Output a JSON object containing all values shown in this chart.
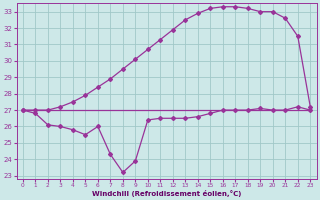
{
  "bg_color": "#cde8e8",
  "grid_color": "#a0c8c8",
  "line_color": "#993399",
  "xlabel": "Windchill (Refroidissement éolien,°C)",
  "xlabel_color": "#660066",
  "ylim": [
    22.8,
    33.5
  ],
  "xlim": [
    -0.5,
    23.5
  ],
  "yticks": [
    23,
    24,
    25,
    26,
    27,
    28,
    29,
    30,
    31,
    32,
    33
  ],
  "xticks": [
    0,
    1,
    2,
    3,
    4,
    5,
    6,
    7,
    8,
    9,
    10,
    11,
    12,
    13,
    14,
    15,
    16,
    17,
    18,
    19,
    20,
    21,
    22,
    23
  ],
  "line1_x": [
    0,
    1,
    2,
    3,
    4,
    5,
    6,
    7,
    8,
    9,
    10,
    11,
    12,
    13,
    14,
    15,
    16,
    17,
    18,
    19,
    20,
    21,
    22,
    23
  ],
  "line1_y": [
    27.0,
    26.8,
    26.1,
    26.0,
    25.8,
    25.5,
    26.0,
    24.3,
    23.2,
    23.9,
    26.4,
    26.5,
    26.5,
    26.5,
    26.6,
    26.8,
    27.0,
    27.0,
    27.0,
    27.1,
    27.0,
    27.0,
    27.2,
    27.0
  ],
  "line2_x": [
    0,
    1,
    2,
    3,
    4,
    5,
    6,
    7,
    8,
    9,
    10,
    11,
    12,
    13,
    14,
    15,
    16,
    17,
    18,
    19,
    20,
    21,
    22,
    23
  ],
  "line2_y": [
    27.0,
    27.0,
    27.0,
    27.0,
    27.0,
    27.0,
    27.0,
    27.0,
    27.0,
    27.0,
    27.0,
    27.0,
    27.0,
    27.0,
    27.0,
    27.0,
    27.0,
    27.0,
    27.0,
    27.0,
    27.0,
    27.0,
    27.0,
    27.0
  ],
  "line3_x": [
    0,
    1,
    2,
    3,
    4,
    5,
    6,
    7,
    8,
    9,
    10,
    11,
    12,
    13,
    14,
    15,
    16,
    17,
    18,
    19,
    20,
    21,
    22,
    23
  ],
  "line3_y": [
    27.0,
    27.0,
    27.0,
    27.2,
    27.5,
    27.9,
    28.4,
    28.9,
    29.5,
    30.1,
    30.7,
    31.3,
    31.9,
    32.5,
    32.9,
    33.2,
    33.3,
    33.3,
    33.2,
    33.0,
    33.0,
    32.6,
    31.5,
    27.2
  ],
  "marker": "D",
  "markersize": 2.0,
  "linewidth": 0.9
}
